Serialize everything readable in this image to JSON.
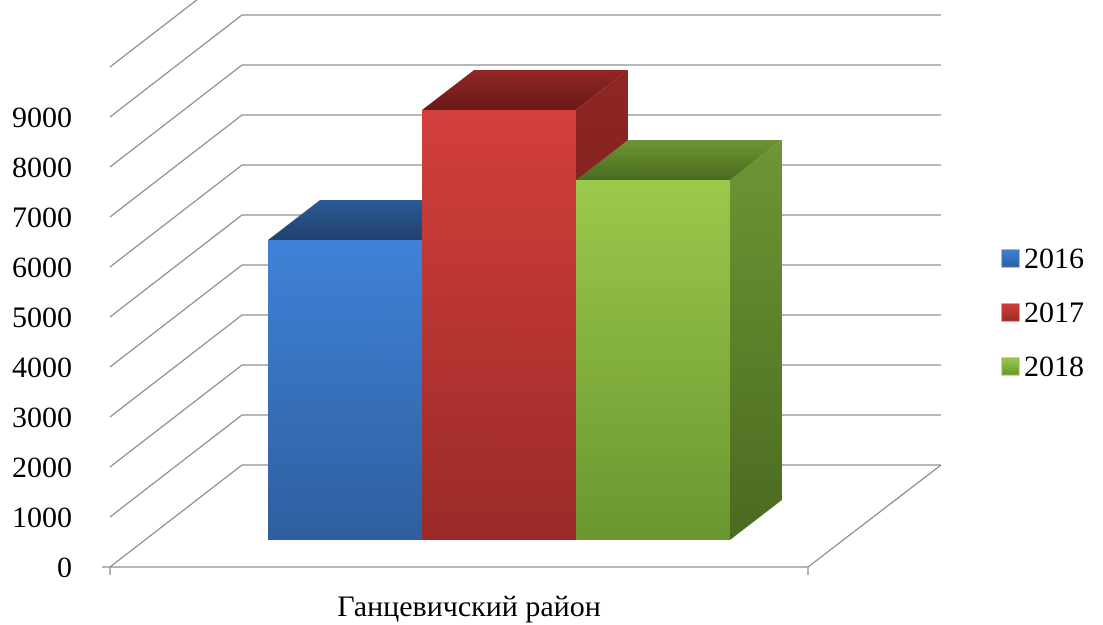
{
  "chart_data": {
    "type": "bar",
    "categories": [
      "Ганцевичский район"
    ],
    "series": [
      {
        "name": "2016",
        "values": [
          6000
        ],
        "color": "#3a78cc"
      },
      {
        "name": "2017",
        "values": [
          8600
        ],
        "color": "#c93432"
      },
      {
        "name": "2018",
        "values": [
          7200
        ],
        "color": "#8cbc3e"
      }
    ],
    "y_ticks": [
      "0",
      "1000",
      "2000",
      "3000",
      "4000",
      "5000",
      "6000",
      "7000",
      "8000",
      "9000"
    ],
    "ylim": [
      0,
      9000
    ],
    "style": "3d-column",
    "grid": true,
    "legend_position": "right"
  }
}
